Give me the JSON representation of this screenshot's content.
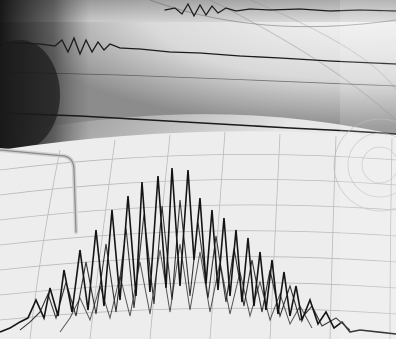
{
  "image": {
    "subject": "seismograph",
    "style": "grayscale photograph",
    "colors": {
      "paper_light": "#efefef",
      "paper_mid": "#bdbdbd",
      "shadow_dark": "#1a1a1a",
      "trace": "#111111",
      "grid": "#a9a9a9",
      "arm": "#d8d8d8"
    }
  }
}
